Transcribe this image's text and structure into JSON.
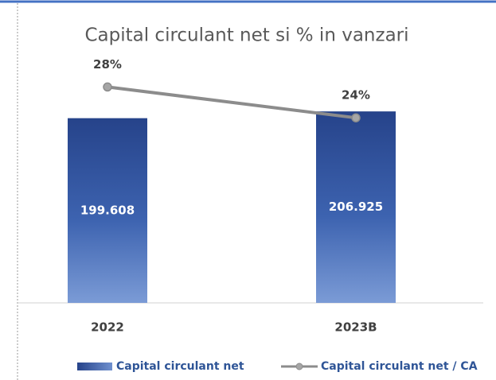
{
  "chart_data": {
    "type": "bar_line",
    "title": "Capital circulant net si % in vanzari",
    "categories": [
      "2022",
      "2023B"
    ],
    "series": [
      {
        "name": "Capital circulant net",
        "type": "bar",
        "color": "#2f5597",
        "values": [
          199608,
          206925
        ],
        "value_labels": [
          "199.608",
          "206.925"
        ]
      },
      {
        "name": "Capital circulant net / CA",
        "type": "line",
        "axis": "y2",
        "color": "#8c8c8c",
        "values": [
          28,
          24
        ],
        "value_labels": [
          "28%",
          "24%"
        ]
      }
    ],
    "ylim": [
      0,
      250000
    ],
    "y2lim": [
      0,
      30
    ],
    "grid": false,
    "legend": "bottom"
  }
}
